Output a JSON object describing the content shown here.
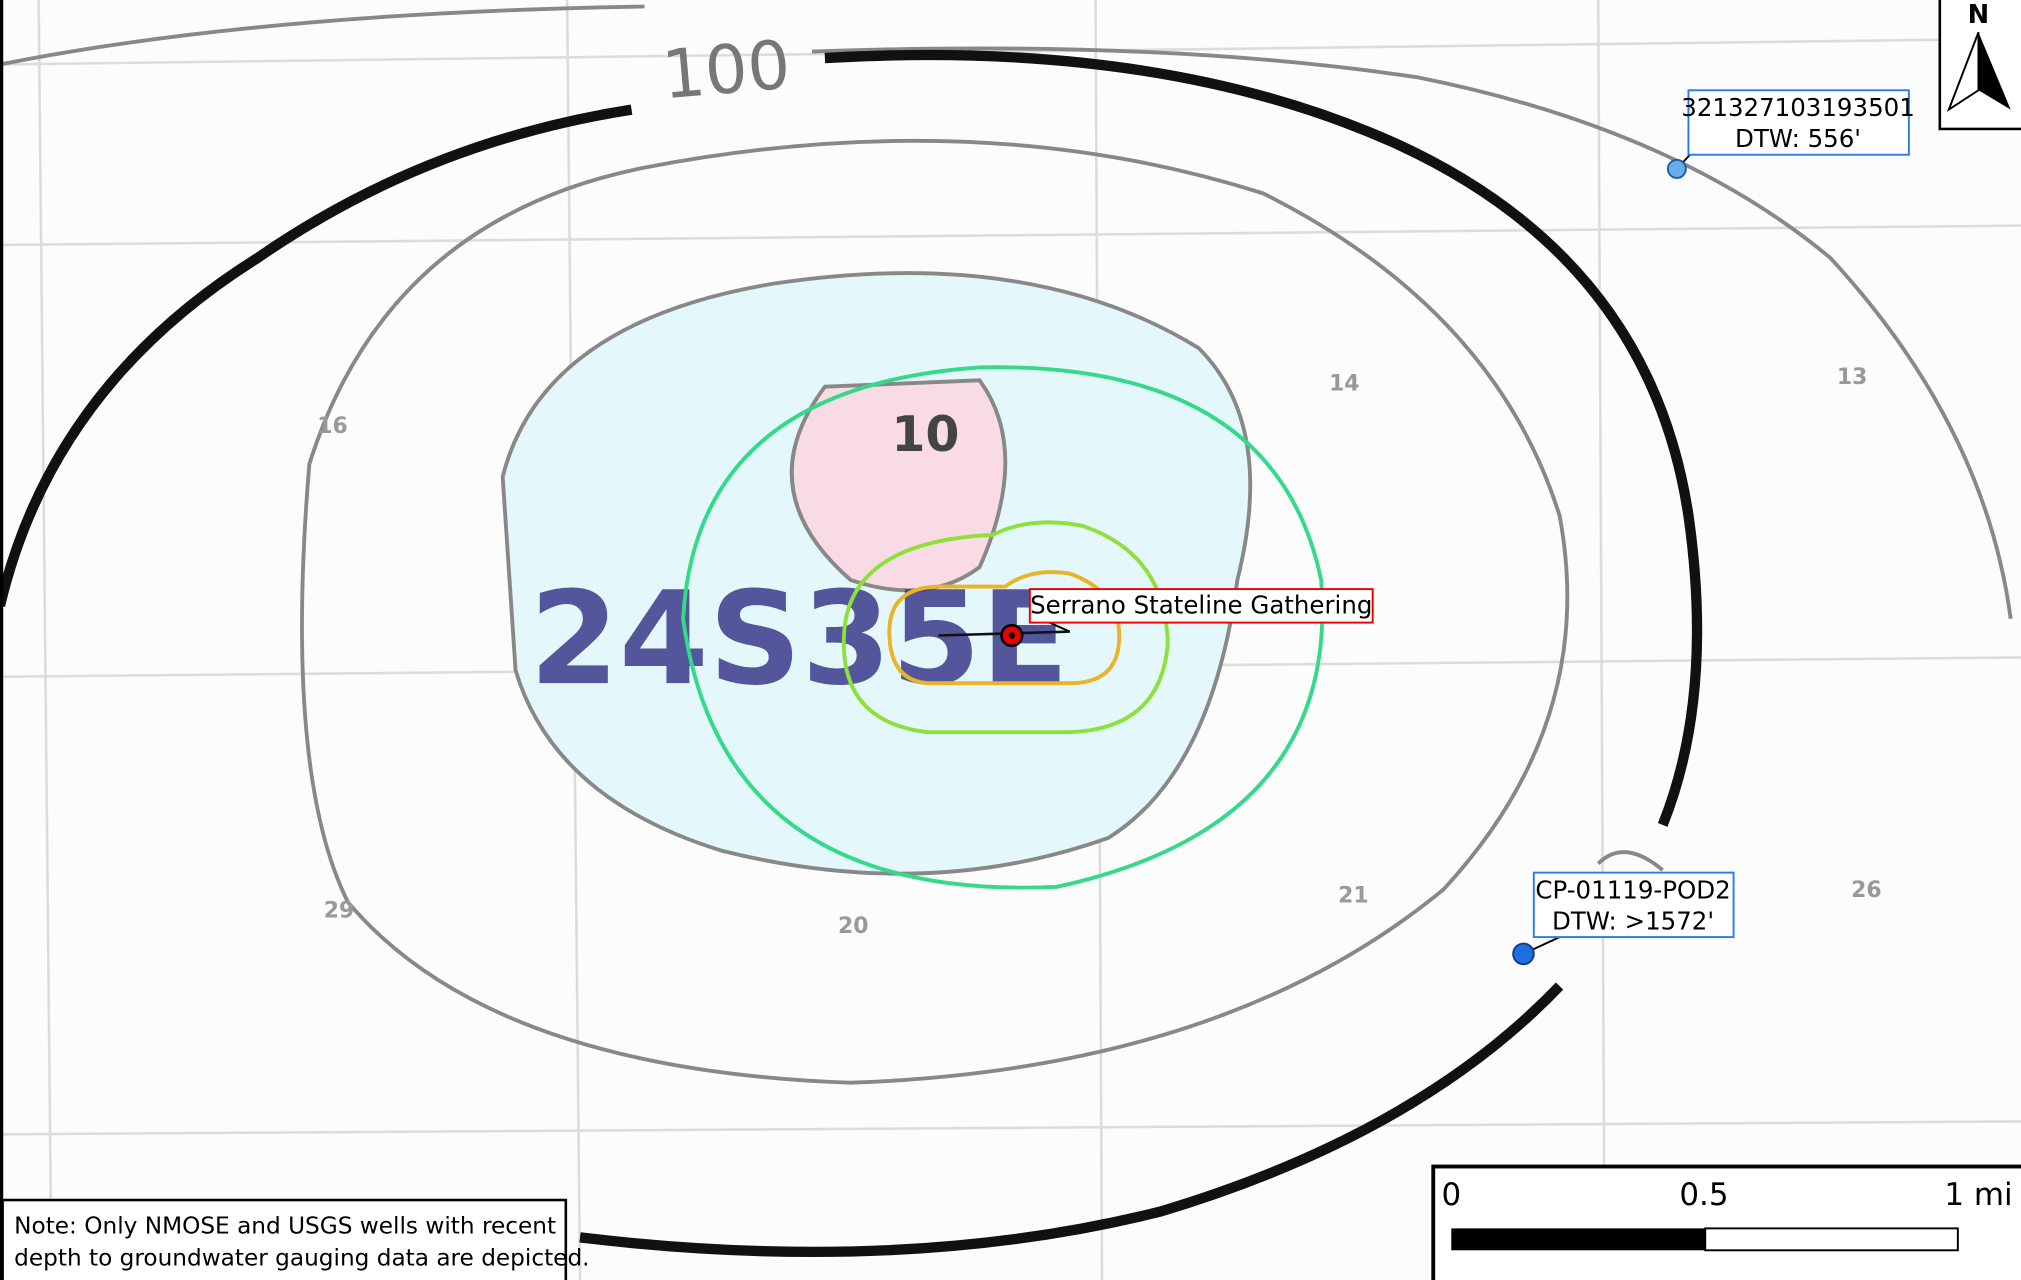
{
  "map": {
    "contour_labels": [
      "100",
      "10"
    ],
    "township_label": "24S35E",
    "section_labels": [
      "16",
      "14",
      "13",
      "29",
      "20",
      "21",
      "26"
    ]
  },
  "site": {
    "name": "Serrano Stateline Gathering"
  },
  "wells": [
    {
      "id": "321327103193501",
      "dtw": "DTW: 556'"
    },
    {
      "id": "CP-01119-POD2",
      "dtw": "DTW: >1572'"
    }
  ],
  "north_arrow": {
    "label": "N"
  },
  "scale_bar": {
    "labels": [
      "0",
      "0.5",
      "1 mi"
    ]
  },
  "note": {
    "lines": [
      "Note:  Only NMOSE and USGS wells with recent",
      "depth to groundwater gauging data are depicted."
    ]
  }
}
